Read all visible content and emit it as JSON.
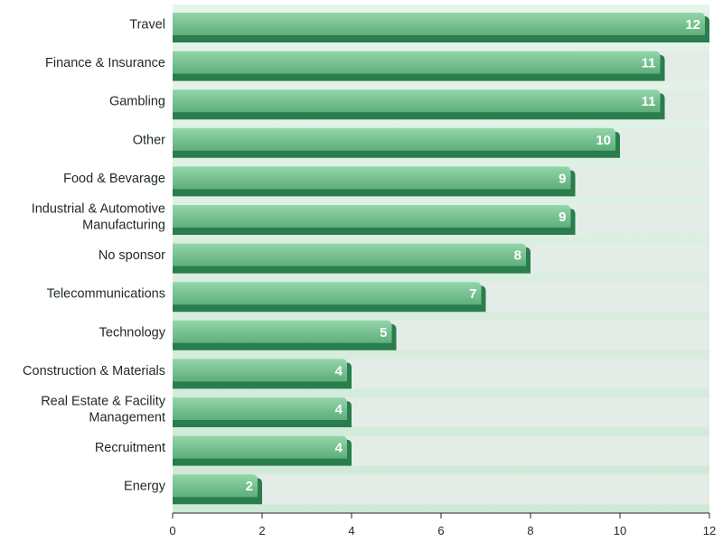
{
  "chart_data": {
    "type": "bar",
    "orientation": "horizontal",
    "title": "",
    "xlabel": "",
    "ylabel": "",
    "xlim": [
      0,
      12
    ],
    "x_ticks": [
      0,
      2,
      4,
      6,
      8,
      10,
      12
    ],
    "grid": false,
    "categories": [
      "Travel",
      "Finance & Insurance",
      "Gambling",
      "Other",
      "Food & Bevarage",
      "Industrial & Automotive Manufacturing",
      "No sponsor",
      "Telecommunications",
      "Technology",
      "Construction & Materials",
      "Real Estate & Facility Management",
      "Recruitment",
      "Energy"
    ],
    "category_lines": [
      [
        "Travel"
      ],
      [
        "Finance & Insurance"
      ],
      [
        "Gambling"
      ],
      [
        "Other"
      ],
      [
        "Food & Bevarage"
      ],
      [
        "Industrial & Automotive",
        "Manufacturing"
      ],
      [
        "No sponsor"
      ],
      [
        "Telecommunications"
      ],
      [
        "Technology"
      ],
      [
        "Construction & Materials"
      ],
      [
        "Real Estate & Facility",
        "Management"
      ],
      [
        "Recruitment"
      ],
      [
        "Energy"
      ]
    ],
    "values": [
      12,
      11,
      11,
      10,
      9,
      9,
      8,
      7,
      5,
      4,
      4,
      4,
      2
    ]
  },
  "colors": {
    "bar_light": "#8fd3a6",
    "bar_mid": "#5fb07c",
    "bar_dark": "#2a7d4d",
    "track": "#e4ece7",
    "panel": "#d4ecdc",
    "axis": "#1f2a24"
  }
}
